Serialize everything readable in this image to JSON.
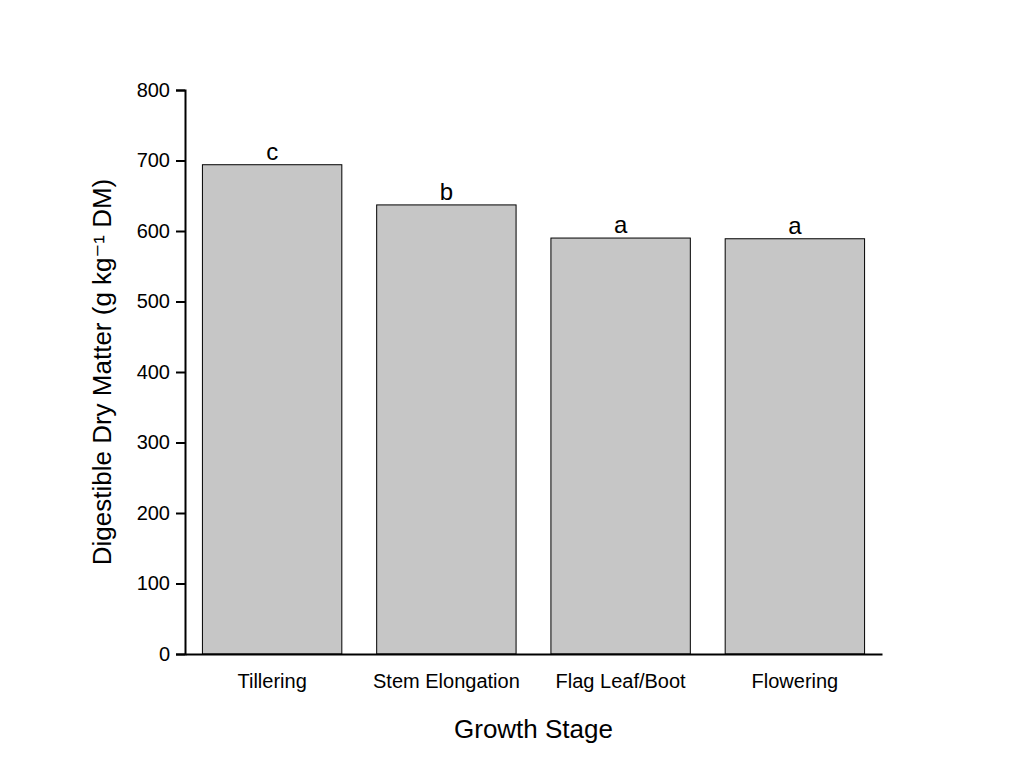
{
  "chart_data": {
    "type": "bar",
    "x_label": "Growth Stage",
    "y_label": "Digestible Dry Matter (g kg⁻¹ DM)",
    "categories": [
      "Tillering",
      "Stem Elongation",
      "Flag Leaf/Boot",
      "Flowering"
    ],
    "values": [
      694,
      637,
      590,
      589
    ],
    "annotations": [
      "c",
      "b",
      "a",
      "a"
    ],
    "color": "#c6c6c6",
    "ylim": [
      0,
      800
    ],
    "yticks": [
      0,
      100,
      200,
      300,
      400,
      500,
      600,
      700,
      800
    ],
    "grid": false
  }
}
